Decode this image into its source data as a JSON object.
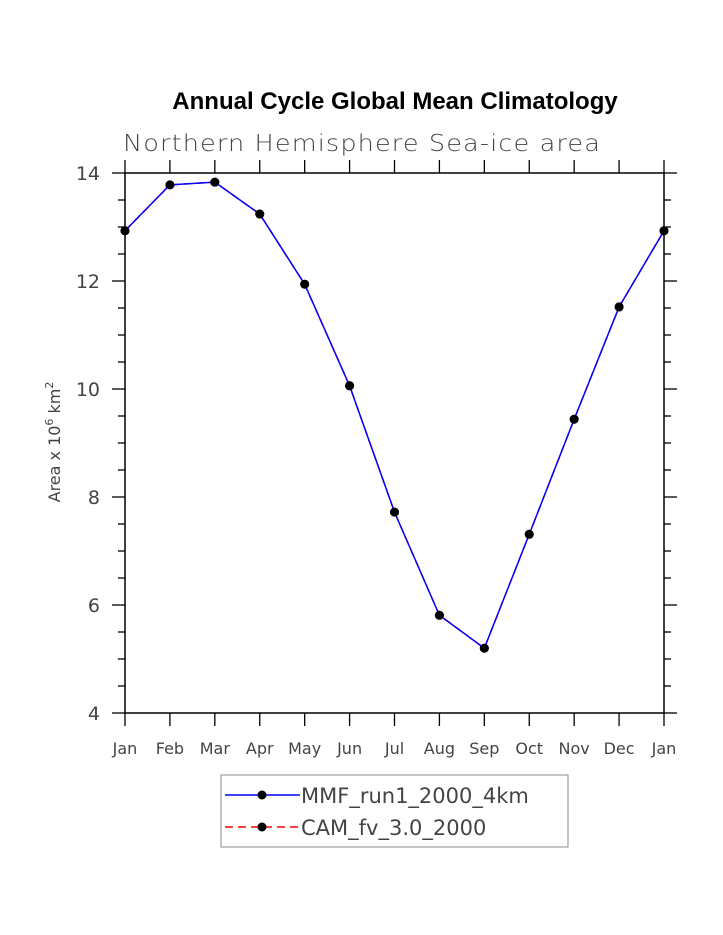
{
  "chart_data": {
    "type": "line",
    "title": "Annual Cycle Global Mean Climatology",
    "subtitle": "Northern Hemisphere Sea-ice area",
    "ylabel_base": "Area x 10",
    "ylabel_exp": "6",
    "ylabel_unit": " km",
    "ylabel_unit_exp": "2",
    "xlabel": "",
    "categories": [
      "Jan",
      "Feb",
      "Mar",
      "Apr",
      "May",
      "Jun",
      "Jul",
      "Aug",
      "Sep",
      "Oct",
      "Nov",
      "Dec",
      "Jan"
    ],
    "ylim": [
      4,
      14
    ],
    "yticks": [
      "4",
      "6",
      "8",
      "10",
      "12",
      "14"
    ],
    "grid": false,
    "legend_position": "bottom-center",
    "series": [
      {
        "name": "CAM_fv_3.0_2000",
        "color": "#ff0000",
        "dash": true,
        "values": [
          12.93,
          13.78,
          13.83,
          13.24,
          11.94,
          10.06,
          7.72,
          5.81,
          5.2,
          7.31,
          9.44,
          11.52,
          12.93
        ]
      },
      {
        "name": "MMF_run1_2000_4km",
        "color": "#0000ff",
        "dash": false,
        "values": [
          12.93,
          13.78,
          13.83,
          13.24,
          11.94,
          10.06,
          7.72,
          5.81,
          5.2,
          7.31,
          9.44,
          11.52,
          12.93
        ]
      }
    ],
    "legend_order": [
      1,
      0
    ]
  }
}
